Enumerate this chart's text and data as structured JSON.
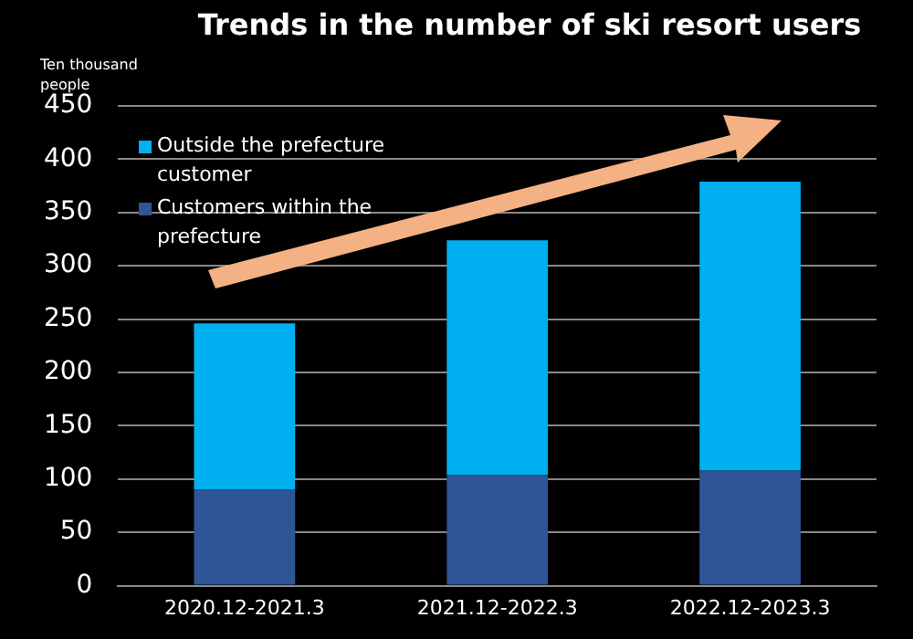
{
  "chart_data": {
    "type": "bar",
    "title": "Trends in the number of ski resort users",
    "ylabel": "Ten thousand people",
    "categories": [
      "2020.12-2021.3",
      "2021.12-2022.3",
      "2022.12-2023.3"
    ],
    "stacked": true,
    "series": [
      {
        "name": "Customers within the prefecture",
        "color": "#2f5597",
        "values": [
          90,
          104,
          108
        ]
      },
      {
        "name": "Outside the prefecture customer",
        "color": "#00b0f0",
        "values": [
          156,
          220,
          271
        ]
      }
    ],
    "ylim": [
      0,
      450
    ],
    "yticks": [
      0,
      50,
      100,
      150,
      200,
      250,
      300,
      350,
      400,
      450
    ],
    "grid": "y",
    "legend": "top left"
  }
}
